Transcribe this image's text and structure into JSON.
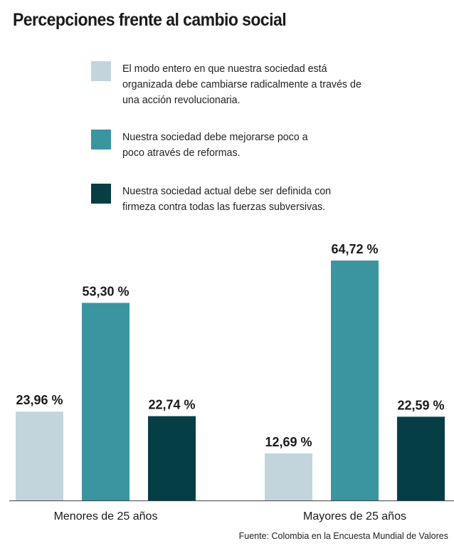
{
  "colors": {
    "light": "#c3d5dc",
    "mid": "#3a95a1",
    "dark": "#053e44"
  },
  "chart_data": {
    "type": "bar",
    "title": "Percepciones frente al cambio social",
    "categories": [
      "Menores de 25 años",
      "Mayores de 25 años"
    ],
    "series": [
      {
        "name": "El modo entero en que nuestra sociedad está organizada debe cambiarse radicalmente a través de una acción revolucionaria.",
        "values": [
          23.96,
          12.69
        ],
        "labels": [
          "23,96 %",
          "12,69 %"
        ],
        "color": "#c3d5dc"
      },
      {
        "name": "Nuestra sociedad debe mejorarse poco a poco através de reformas.",
        "values": [
          53.3,
          64.72
        ],
        "labels": [
          "53,30 %",
          "64,72 %"
        ],
        "color": "#3a95a1"
      },
      {
        "name": "Nuestra sociedad actual debe ser definida con firmeza contra todas las fuerzas subversivas.",
        "values": [
          22.74,
          22.59
        ],
        "labels": [
          "22,74 %",
          "22,59 %"
        ],
        "color": "#053e44"
      }
    ],
    "ylim": [
      0,
      64.72
    ],
    "xlabel": "",
    "ylabel": "",
    "grid": false,
    "legend": "top",
    "source": "Fuente: Colombia en la Encuesta Mundial de Valores"
  }
}
